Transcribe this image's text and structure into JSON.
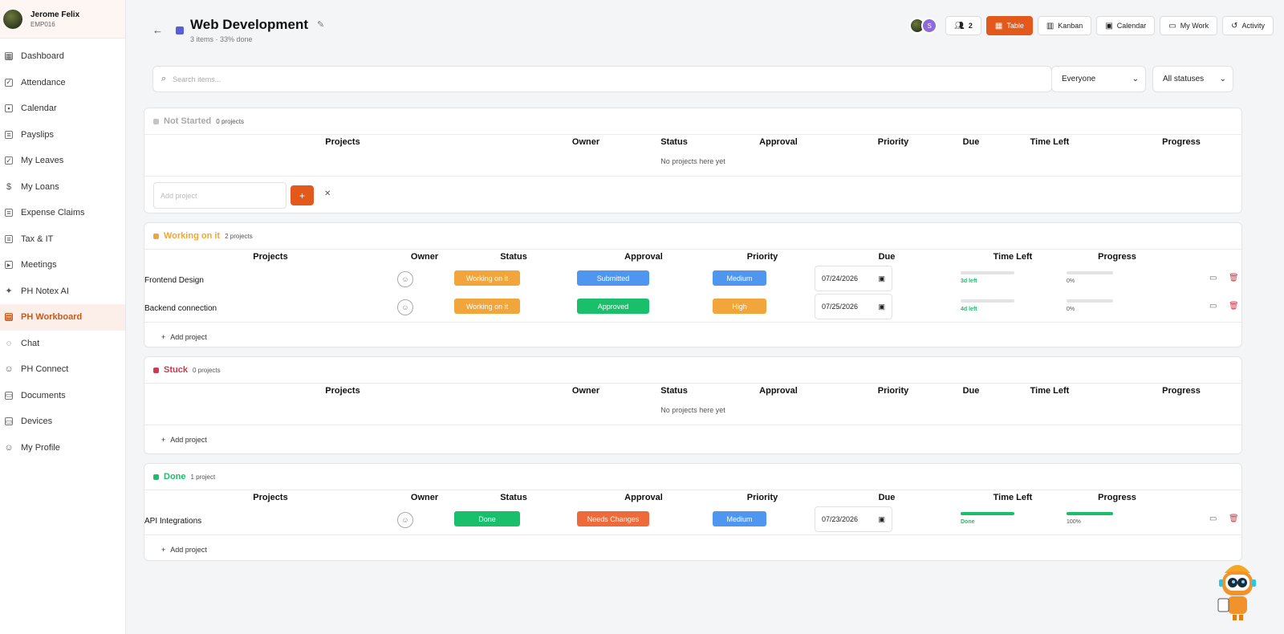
{
  "profile": {
    "name": "Jerome Felix",
    "id": "EMP016"
  },
  "nav": [
    {
      "label": "Dashboard",
      "icon": "grid-icon",
      "glyph": "▦"
    },
    {
      "label": "Attendance",
      "icon": "clipboard-icon",
      "glyph": "✓"
    },
    {
      "label": "Calendar",
      "icon": "calendar-icon",
      "glyph": "▪"
    },
    {
      "label": "Payslips",
      "icon": "document-icon",
      "glyph": "≡"
    },
    {
      "label": "My Leaves",
      "icon": "calendar-check-icon",
      "glyph": "✓"
    },
    {
      "label": "My Loans",
      "icon": "dollar-icon",
      "glyph": "$"
    },
    {
      "label": "Expense Claims",
      "icon": "receipt-icon",
      "glyph": "≡"
    },
    {
      "label": "Tax & IT",
      "icon": "file-icon",
      "glyph": "≡"
    },
    {
      "label": "Meetings",
      "icon": "video-icon",
      "glyph": "▸"
    },
    {
      "label": "PH Notex AI",
      "icon": "sparkle-icon",
      "glyph": "✦"
    },
    {
      "label": "PH Workboard",
      "icon": "board-icon",
      "glyph": "▤"
    },
    {
      "label": "Chat",
      "icon": "chat-icon",
      "glyph": "◌"
    },
    {
      "label": "PH Connect",
      "icon": "connect-icon",
      "glyph": "☺"
    },
    {
      "label": "Documents",
      "icon": "folder-icon",
      "glyph": "▭"
    },
    {
      "label": "Devices",
      "icon": "laptop-icon",
      "glyph": "▭"
    },
    {
      "label": "My Profile",
      "icon": "user-icon",
      "glyph": "☺"
    }
  ],
  "active_nav": "PH Workboard",
  "header": {
    "title": "Web Development",
    "subtitle": "3 items · 33% done",
    "member_initial": "S",
    "member_count": "2",
    "views": [
      "Table",
      "Kanban",
      "Calendar",
      "My Work",
      "Activity"
    ],
    "active_view": "Table"
  },
  "search": {
    "placeholder": "Search items..."
  },
  "filters": {
    "owner": "Everyone",
    "status": "All statuses"
  },
  "columns": [
    "Projects",
    "Owner",
    "Status",
    "Approval",
    "Priority",
    "Due",
    "Time Left",
    "Progress"
  ],
  "groups": [
    {
      "name": "Not Started",
      "count": "0 projects",
      "color": "#c4c4c4",
      "empty_text": "No projects here yet",
      "add_placeholder": "Add project",
      "add_button": "+"
    },
    {
      "name": "Working on it",
      "count": "2 projects",
      "color": "#f2a53a",
      "add_link": "Add project",
      "rows": [
        {
          "project": "Frontend Design",
          "status": "Working on it",
          "approval": "Submitted",
          "priority": "Medium",
          "due": "07/24/2026",
          "time_left": "3d left",
          "progress": "0%"
        },
        {
          "project": "Backend connection",
          "status": "Working on it",
          "approval": "Approved",
          "priority": "High",
          "due": "07/25/2026",
          "time_left": "4d left",
          "progress": "0%"
        }
      ]
    },
    {
      "name": "Stuck",
      "count": "0 projects",
      "color": "#c93b4f",
      "empty_text": "No projects here yet",
      "add_link": "Add project"
    },
    {
      "name": "Done",
      "count": "1 project",
      "color": "#19bf6b",
      "add_link": "Add project",
      "rows": [
        {
          "project": "API Integrations",
          "status": "Done",
          "approval": "Needs Changes",
          "priority": "Medium",
          "due": "07/23/2026",
          "time_left": "Done",
          "progress": "100%"
        }
      ]
    }
  ],
  "colors": {
    "accent": "#e3581b",
    "working": "#f2a53a",
    "submitted": "#4f96f0",
    "approved": "#19bf6b",
    "needs_changes": "#ef6a3a",
    "medium": "#4f96f0",
    "high": "#f2a53a",
    "done": "#19bf6b",
    "stuck": "#c93b4f"
  }
}
